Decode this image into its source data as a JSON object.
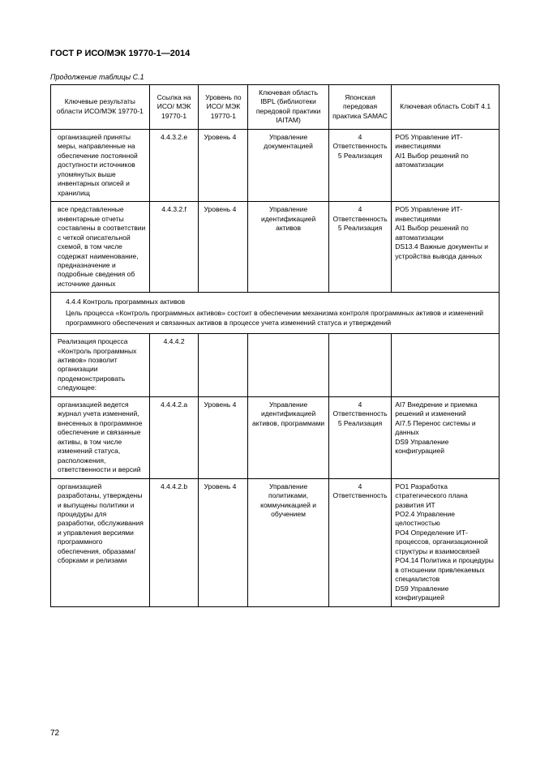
{
  "doc": {
    "title": "ГОСТ Р ИСО/МЭК 19770-1—2014",
    "caption": "Продолжение таблицы С.1",
    "page_number": "72"
  },
  "headers": {
    "c1": "Ключевые результаты области ИСО/МЭК 19770-1",
    "c2": "Ссылка на ИСО/ МЭК 19770-1",
    "c3": "Уровень по ИСО/ МЭК 19770-1",
    "c4": "Ключевая область IBPL (библиотеки передовой практики IAITAM)",
    "c5": "Японская передовая практика SAMAC",
    "c6": "Ключевая область CobiT 4.1"
  },
  "rows": [
    {
      "c1": "организацией приняты меры, направленные на обеспечение постоянной доступности источников упомянутых выше инвентарных описей и хранилищ",
      "c2": "4.4.3.2.e",
      "c3": "Уровень 4",
      "c4": "Управление документацией",
      "c5": [
        "4 Ответственность",
        "5 Реализация"
      ],
      "c6": [
        "PO5 Управление ИТ-инвестициями",
        "AI1 Выбор решений по автоматизации"
      ]
    },
    {
      "c1": "все представленные инвентарные отчеты составлены в соответствии с четкой описательной схемой, в том числе содержат наименование, предназначение и подробные сведения об источнике данных",
      "c2": "4.4.3.2.f",
      "c3": "Уровень 4",
      "c4": "Управление идентификацией активов",
      "c5": [
        "4 Ответственность",
        "5 Реализация"
      ],
      "c6": [
        "PO5 Управление ИТ-инвестициями",
        "AI1 Выбор решений по автоматизации",
        "DS13.4 Важные документы и устройства вывода данных"
      ]
    }
  ],
  "section": {
    "heading": "4.4.4 Контроль программных активов",
    "body": "Цель процесса «Контроль программных активов» состоит в обеспечении механизма контроля программных активов и изменений программного обеспечения и связанных активов в процессе учета изменений статуса и утверждений"
  },
  "rows2": [
    {
      "c1": "Реализация процесса «Контроль программных активов» позволит организации продемонстрировать следующее:",
      "c2": "4.4.4.2",
      "c3": "",
      "c4": "",
      "c5": [],
      "c6": []
    },
    {
      "c1": "организацией ведется журнал учета изменений, внесенных в программное обеспечение и связанные активы, в том числе изменений статуса, расположения, ответственности и версий",
      "c2": "4.4.4.2.a",
      "c3": "Уровень 4",
      "c4": "Управление идентификацией активов, программами",
      "c5": [
        "4 Ответственность",
        "5 Реализация"
      ],
      "c6": [
        "AI7 Внедрение и приемка решений и изменений",
        "AI7.5 Перенос системы и данных",
        "DS9 Управление конфигурацией"
      ]
    },
    {
      "c1": "организацией разработаны, утверждены и выпущены политики и процедуры для разработки, обслуживания и управления версиями программного обеспечения, образами/сборками и релизами",
      "c2": "4.4.4.2.b",
      "c3": "Уровень 4",
      "c4": "Управление политиками, коммуникацией и обучением",
      "c5": [
        "4 Ответственность"
      ],
      "c6": [
        "PO1 Разработка стратегического плана развития ИТ",
        "PO2.4 Управление целостностью",
        "PO4 Определение ИТ-процессов, организационной структуры и взаимосвязей",
        "PO4.14 Политика и процедуры в отношении привлекаемых специалистов",
        "DS9 Управление конфигурацией"
      ]
    }
  ]
}
